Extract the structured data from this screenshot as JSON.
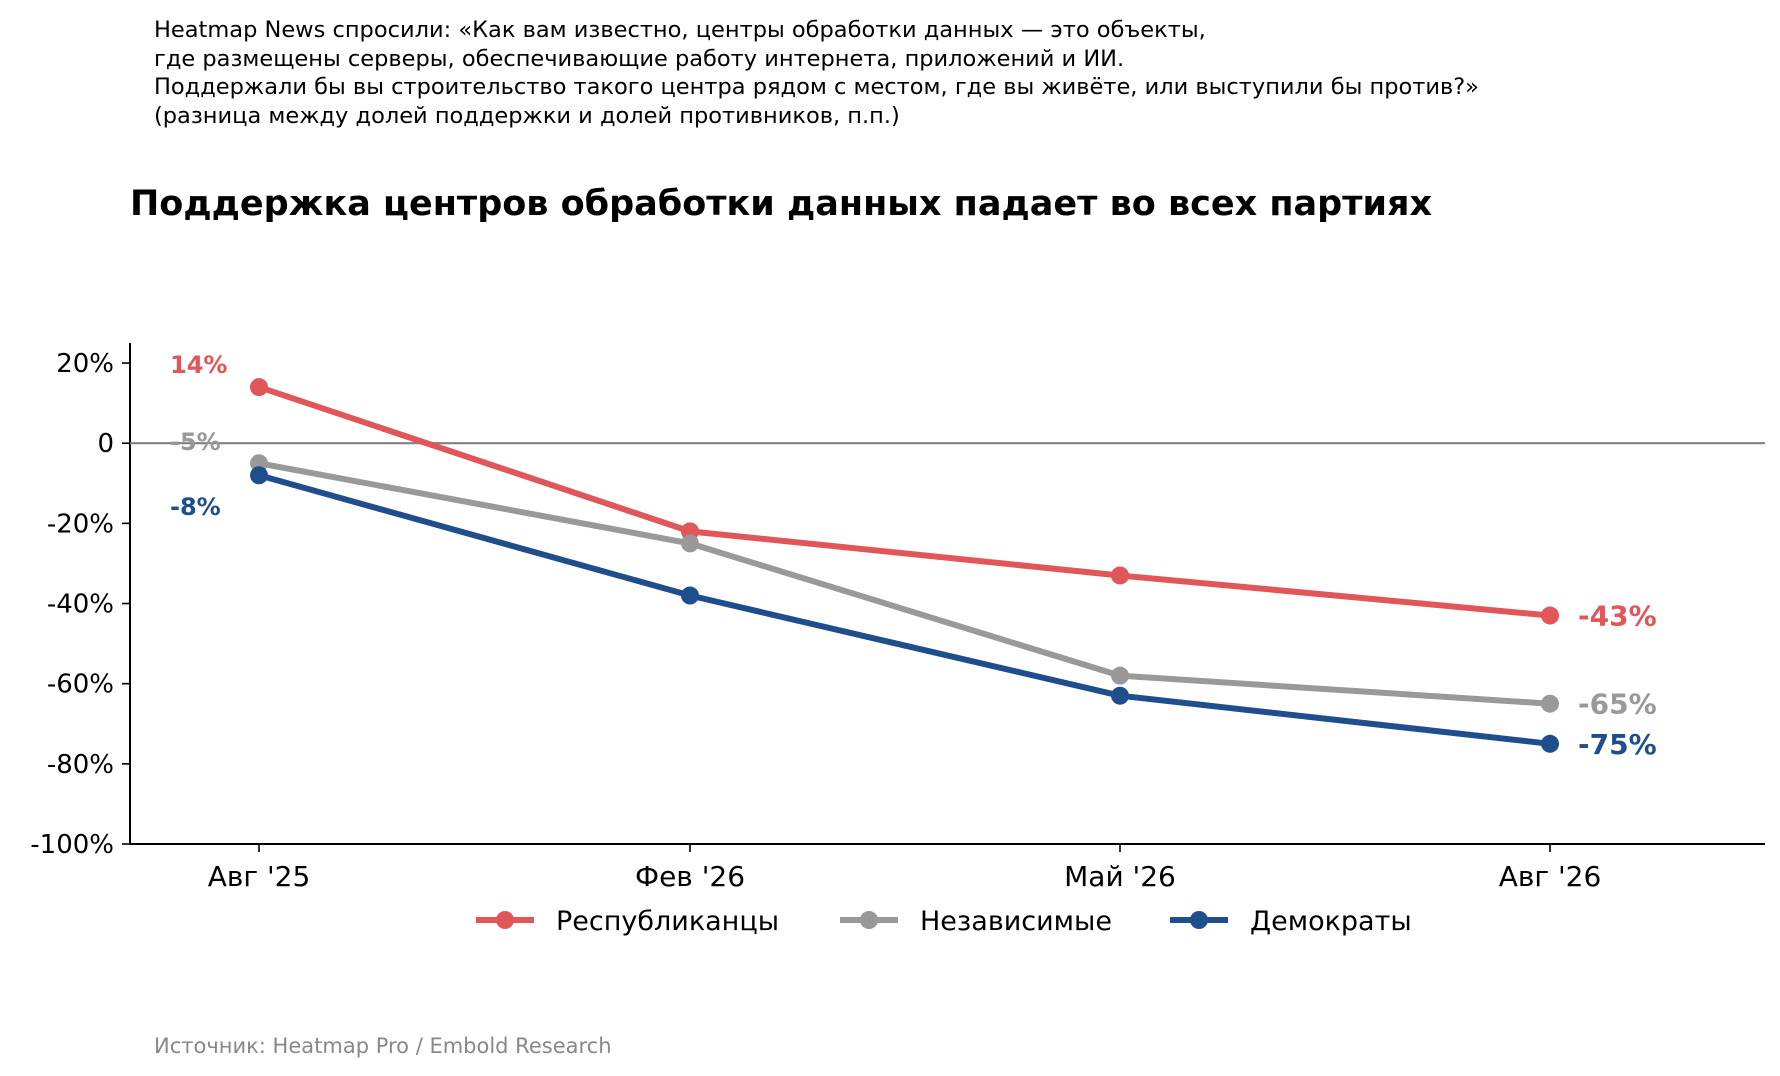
{
  "header_note": [
    "Heatmap News спросили: «Как вам известно, центры обработки данных — это объекты,",
    "где размещены серверы, обеспечивающие работу интернета, приложений и ИИ.",
    "Поддержали бы вы строительство такого центра рядом с местом, где вы живёте, или выступили бы против?»",
    "(разница между долей поддержки и долей противников, п.п.)"
  ],
  "source": "Источник: Heatmap Pro / Embold Research",
  "chart_data": {
    "type": "line",
    "title": "Поддержка центров обработки данных падает во всех партиях",
    "xlabel": "",
    "ylabel": "",
    "categories": [
      "Авг '25",
      "Фев '26",
      "Май '26",
      "Авг '26"
    ],
    "ylim": [
      -100,
      25
    ],
    "yticks": [
      20,
      0,
      -20,
      -40,
      -60,
      -80,
      -100
    ],
    "ytick_labels": [
      "20%",
      "0",
      "-20%",
      "-40%",
      "-60%",
      "-80%",
      "-100%"
    ],
    "zero_line": true,
    "grid": false,
    "legend_position": "bottom",
    "series": [
      {
        "name": "Республиканцы",
        "color": "#e05659",
        "values": [
          14,
          -22,
          -33,
          -43
        ],
        "start_label": "14%",
        "end_label": "-43%"
      },
      {
        "name": "Независимые",
        "color": "#999999",
        "values": [
          -5,
          -25,
          -58,
          -65
        ],
        "start_label": "-5%",
        "end_label": "-65%"
      },
      {
        "name": "Демократы",
        "color": "#1f4e8c",
        "values": [
          -8,
          -38,
          -63,
          -75
        ],
        "start_label": "-8%",
        "end_label": "-75%"
      }
    ]
  }
}
